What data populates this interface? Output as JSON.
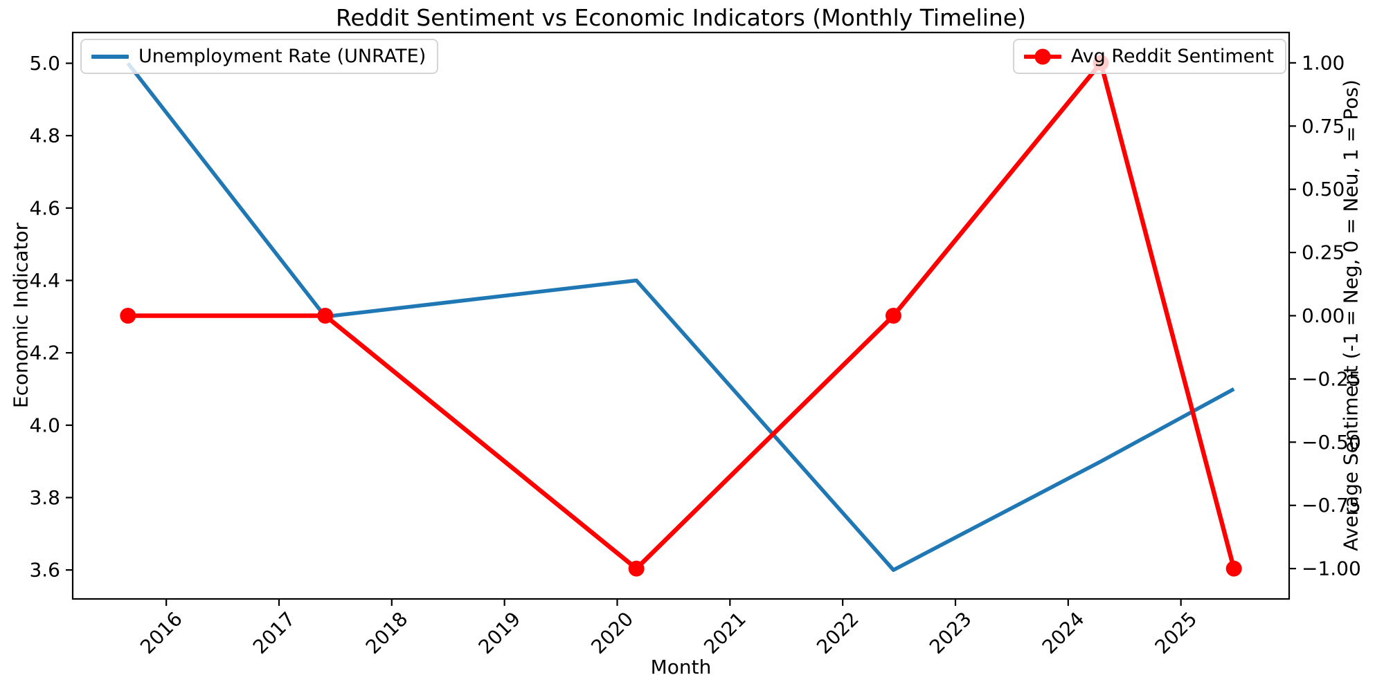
{
  "chart_data": {
    "type": "line",
    "title": "Reddit Sentiment vs Economic Indicators (Monthly Timeline)",
    "xlabel": "Month",
    "ylabel_left": "Economic Indicator",
    "ylabel_right": "Average Sentiment (-1 = Neg, 0 = Neu, 1 = Pos)",
    "grid": false,
    "background_color": "#ffffff",
    "xlim": [
      2015.17,
      2025.96
    ],
    "ylim_left": [
      3.52,
      5.085
    ],
    "ylim_right": [
      -1.12,
      1.12
    ],
    "x_tick_values": [
      2016,
      2017,
      2018,
      2019,
      2020,
      2021,
      2022,
      2023,
      2024,
      2025
    ],
    "x_tick_labels": [
      "2016",
      "2017",
      "2018",
      "2019",
      "2020",
      "2021",
      "2022",
      "2023",
      "2024",
      "2025"
    ],
    "x_tick_rotation_deg": 45,
    "y_tick_values_left": [
      3.6,
      3.8,
      4.0,
      4.2,
      4.4,
      4.6,
      4.8,
      5.0
    ],
    "y_tick_labels_left": [
      "3.6",
      "3.8",
      "4.0",
      "4.2",
      "4.4",
      "4.6",
      "4.8",
      "5.0"
    ],
    "y_tick_values_right": [
      -1.0,
      -0.75,
      -0.5,
      -0.25,
      0.0,
      0.25,
      0.5,
      0.75,
      1.0
    ],
    "y_tick_labels_right": [
      "−1.00",
      "−0.75",
      "−0.50",
      "−0.25",
      "0.00",
      "0.25",
      "0.50",
      "0.75",
      "1.00"
    ],
    "x": [
      2015.66,
      2017.41,
      2020.17,
      2022.45,
      2024.29,
      2025.47
    ],
    "series": [
      {
        "name": "Unemployment Rate (UNRATE)",
        "axis": "left",
        "color": "#1f77b4",
        "marker": "none",
        "legend_position": "upper-left",
        "values": [
          5.0,
          4.3,
          4.4,
          3.6,
          3.9,
          4.1
        ]
      },
      {
        "name": "Avg Reddit Sentiment",
        "axis": "right",
        "color": "#ff0000",
        "marker": "circle",
        "legend_position": "upper-right",
        "values": [
          0.0,
          0.0,
          -1.0,
          0.0,
          1.0,
          -1.0
        ]
      }
    ]
  }
}
